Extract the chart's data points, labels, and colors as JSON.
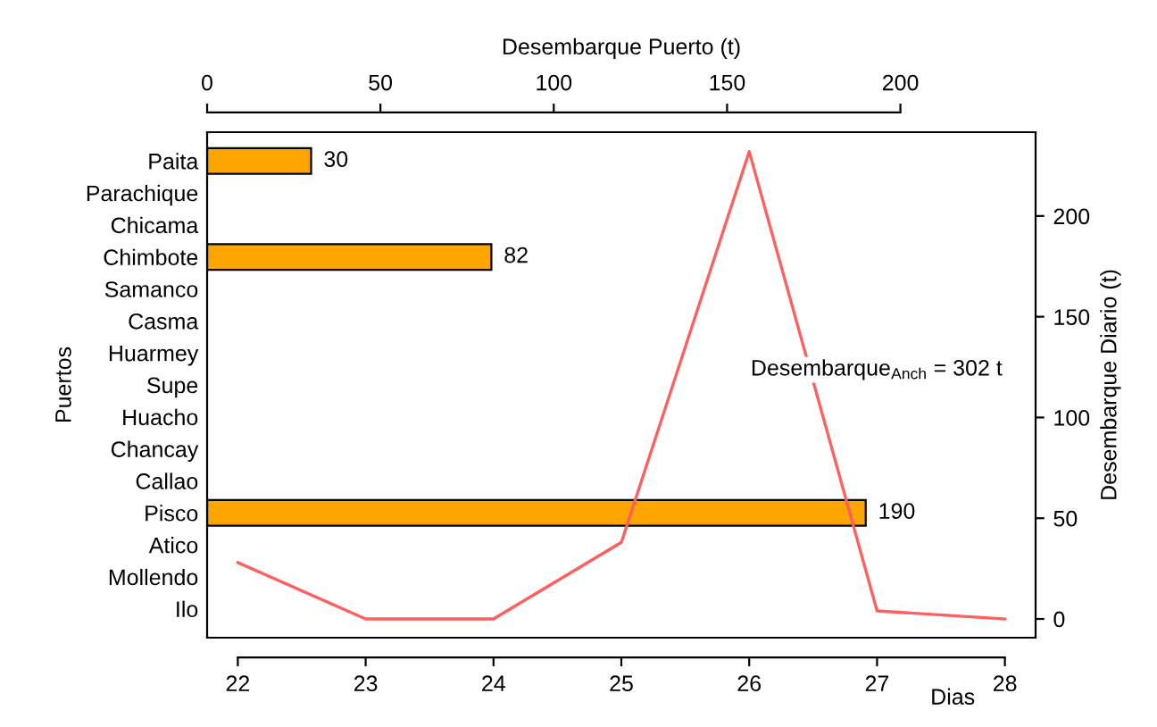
{
  "chart_data": [
    {
      "type": "bar",
      "orientation": "horizontal",
      "xlabel": "Desembarque Puerto (t)",
      "ylabel": "Puertos",
      "categories": [
        "Paita",
        "Parachique",
        "Chicama",
        "Chimbote",
        "Samanco",
        "Casma",
        "Huarmey",
        "Supe",
        "Huacho",
        "Chancay",
        "Callao",
        "Pisco",
        "Atico",
        "Mollendo",
        "Ilo"
      ],
      "values": [
        30,
        null,
        null,
        82,
        null,
        null,
        null,
        null,
        null,
        null,
        null,
        190,
        null,
        null,
        null
      ],
      "color": "#ffa500",
      "xlim": [
        0,
        239
      ],
      "xticks": [
        0,
        50,
        100,
        150,
        200
      ],
      "data_labels": true,
      "grid": false,
      "legend": false
    },
    {
      "type": "line",
      "xlabel": "Dias",
      "y2label": "Desembarque Diario (t)",
      "x": [
        22,
        23,
        24,
        25,
        26,
        27,
        28
      ],
      "xlim": [
        21.76,
        28.24
      ],
      "xticks": [
        22,
        23,
        24,
        25,
        26,
        27,
        28
      ],
      "series": [
        {
          "color": "#ff5f5f",
          "axis": "y2",
          "values": [
            28,
            0,
            0,
            38,
            232,
            4,
            0
          ]
        }
      ],
      "y2lim": [
        -9.3,
        241.6
      ],
      "y2ticks": [
        0,
        50,
        100,
        150,
        200
      ],
      "annotations": [
        "Desembarque$_{Anch}$ = 302 t"
      ],
      "marker": "none",
      "line_style": "solid",
      "grid": false,
      "legend": false
    }
  ]
}
